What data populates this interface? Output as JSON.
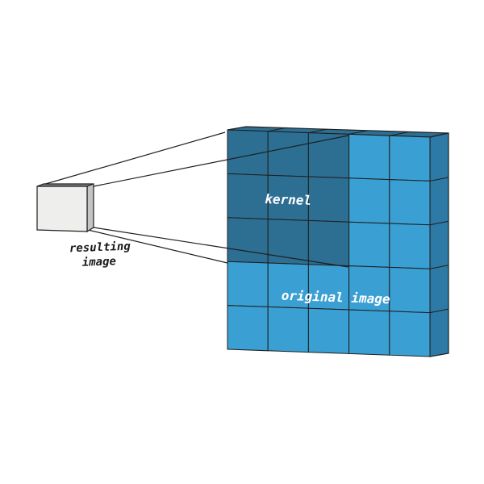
{
  "labels": {
    "kernel": "kernel",
    "original_image": "original image",
    "resulting_line1": "resulting",
    "resulting_line2": "image"
  },
  "colors": {
    "cell_light": "#3a9fd2",
    "cell_dark": "#2d6f93",
    "side_face": "#2e7aa6",
    "top_face": "#2d6f93",
    "cube_front": "#eeeeec",
    "cube_top": "#8a8a8a",
    "cube_side": "#c4c4c4",
    "line": "#1f1f1f"
  },
  "grid": {
    "rows": 5,
    "cols": 5,
    "kernel_rows": 3,
    "kernel_cols": 3
  }
}
